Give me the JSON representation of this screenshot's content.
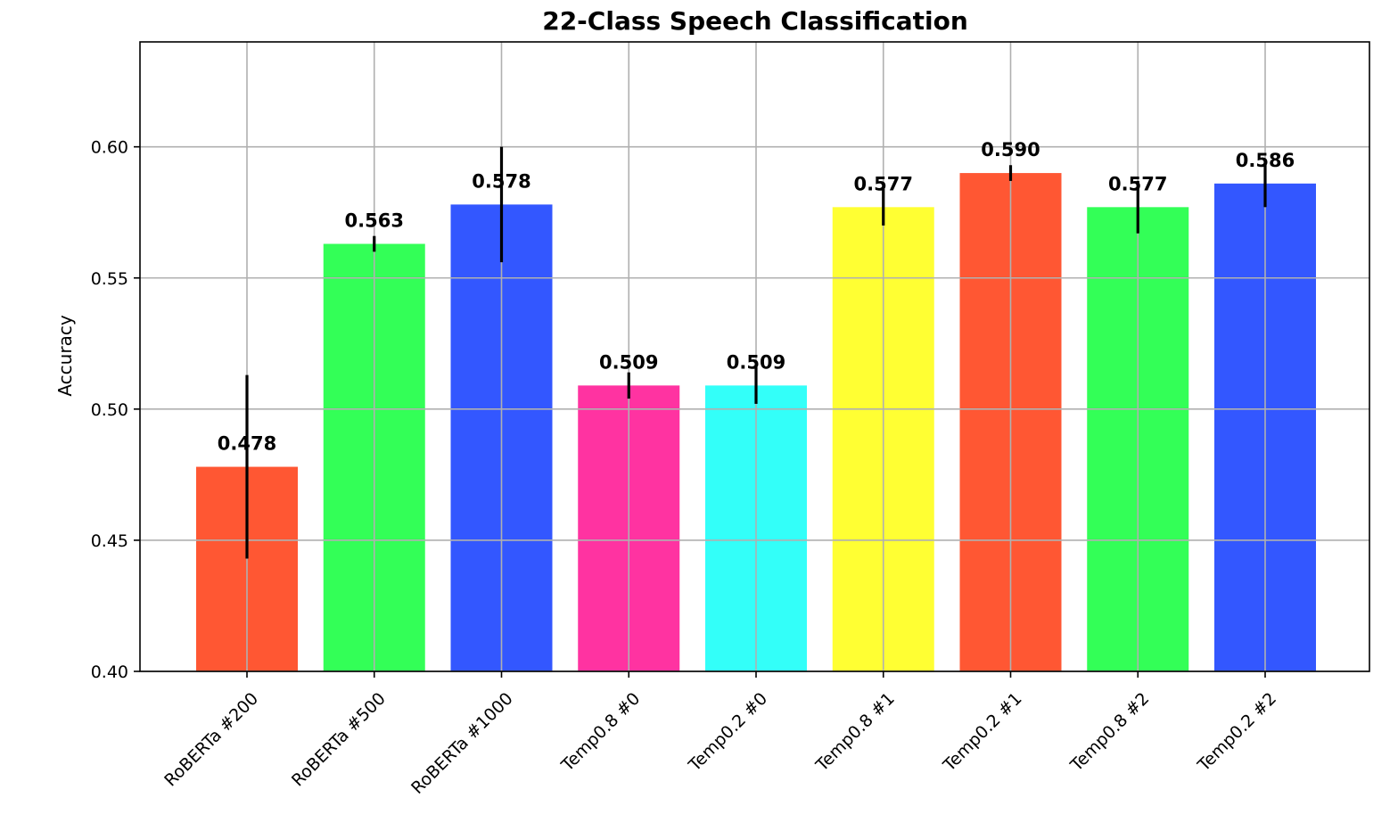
{
  "chart_data": {
    "type": "bar",
    "title": "22-Class Speech Classification",
    "xlabel": "",
    "ylabel": "Accuracy",
    "ylim": [
      0.4,
      0.64
    ],
    "yticks": [
      "0.40",
      "0.45",
      "0.50",
      "0.55",
      "0.60"
    ],
    "ytick_values": [
      0.4,
      0.45,
      0.5,
      0.55,
      0.6
    ],
    "grid": true,
    "categories": [
      "RoBERTa #200",
      "RoBERTa #500",
      "RoBERTa #1000",
      "Temp0.8 #0",
      "Temp0.2 #0",
      "Temp0.8 #1",
      "Temp0.2 #1",
      "Temp0.8 #2",
      "Temp0.2 #2"
    ],
    "values": [
      0.478,
      0.563,
      0.578,
      0.509,
      0.509,
      0.577,
      0.59,
      0.577,
      0.586
    ],
    "errors": [
      0.035,
      0.003,
      0.022,
      0.005,
      0.007,
      0.007,
      0.003,
      0.01,
      0.009
    ],
    "value_labels": [
      "0.478",
      "0.563",
      "0.578",
      "0.509",
      "0.509",
      "0.577",
      "0.590",
      "0.577",
      "0.586"
    ],
    "colors": [
      "#ff5733",
      "#33ff57",
      "#3357ff",
      "#ff33a1",
      "#33fff9",
      "#ffff33",
      "#ff5733",
      "#33ff57",
      "#3357ff"
    ]
  }
}
